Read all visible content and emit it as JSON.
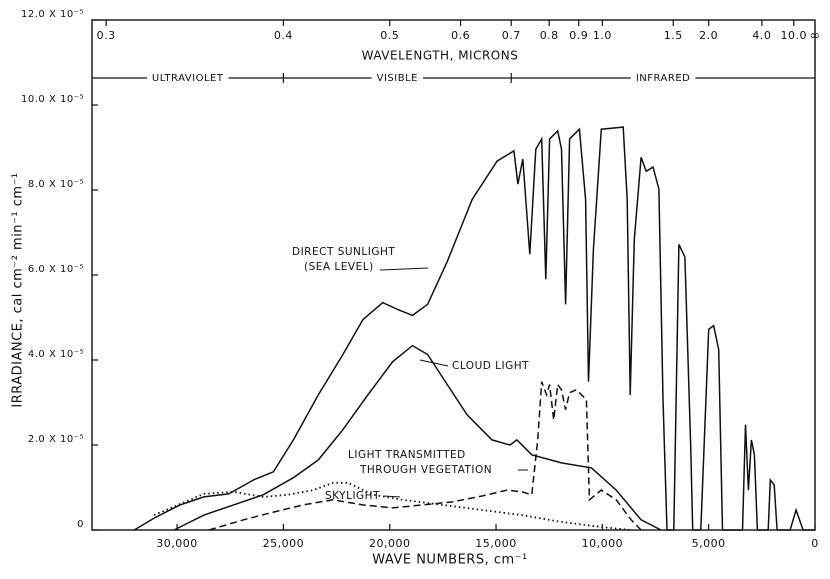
{
  "chart_data": {
    "type": "line",
    "x_title": "WAVE NUMBERS, cm⁻¹",
    "y_title": "IRRADIANCE, cal cm⁻² min⁻¹ cm⁻¹",
    "x2_title": "WAVELENGTH, MICRONS",
    "x2_end_label": "∞",
    "regions": [
      "ULTRAVIOLET",
      "VISIBLE",
      "INFRARED"
    ],
    "region_bounds": [
      0.4,
      0.7
    ],
    "xlim": [
      34000,
      0
    ],
    "ylim": [
      0,
      12
    ],
    "xticks": [
      {
        "value": 30000,
        "label": "30,000"
      },
      {
        "value": 25000,
        "label": "25,000"
      },
      {
        "value": 20000,
        "label": "20,000"
      },
      {
        "value": 15000,
        "label": "15,000"
      },
      {
        "value": 10000,
        "label": "10,000"
      },
      {
        "value": 5000,
        "label": "5,000"
      },
      0
    ],
    "yticks": [
      0,
      {
        "value": 2,
        "label": "2.0 X 10⁻⁵"
      },
      {
        "value": 4,
        "label": "4.0 X 10⁻⁵"
      },
      {
        "value": 6,
        "label": "6.0 X 10⁻⁵"
      },
      {
        "value": 8,
        "label": "8.0 X 10⁻⁵"
      },
      {
        "value": 10,
        "label": "10.0 X 10⁻⁵"
      },
      {
        "value": 12,
        "label": "12.0 X 10⁻⁵"
      }
    ],
    "x2ticks": [
      0.3,
      0.4,
      0.5,
      0.6,
      0.7,
      0.8,
      0.9,
      {
        "value": 1,
        "label": "1.0"
      },
      1.5,
      {
        "value": 2,
        "label": "2.0"
      },
      {
        "value": 4,
        "label": "4.0"
      },
      {
        "value": 10,
        "label": "10.0"
      }
    ],
    "series": [
      {
        "name": [
          "DIRECT SUNLIGHT",
          "(SEA LEVEL)"
        ],
        "color": "#111111",
        "dash": "solid",
        "x": [
          32010,
          31080,
          29860,
          28740,
          27570,
          26400,
          25470,
          24530,
          23360,
          22200,
          21260,
          20330,
          19630,
          18930,
          18220,
          17290,
          16120,
          14950,
          14160,
          13970,
          13740,
          13410,
          13130,
          12850,
          12660,
          12480,
          12100,
          11920,
          11730,
          11540,
          11080,
          10790,
          10650,
          10420,
          10050,
          9020,
          8830,
          8690,
          8500,
          8180,
          7940,
          7620,
          7340,
          7150,
          6960,
          6640,
          6400,
          6120,
          5840,
          5750,
          5370,
          5000,
          4770,
          4530,
          4350,
          3410,
          3270,
          3130,
          2990,
          2850,
          2710,
          2200,
          2100,
          1920,
          1780,
          1170,
          890,
          560,
          0
        ],
        "values": [
          0,
          0.28,
          0.59,
          0.78,
          0.85,
          1.18,
          1.37,
          2.12,
          3.18,
          4.13,
          4.95,
          5.35,
          5.19,
          5.05,
          5.31,
          6.32,
          7.78,
          8.68,
          8.92,
          8.14,
          8.73,
          6.49,
          8.96,
          9.2,
          5.9,
          9.2,
          9.39,
          8.96,
          5.31,
          9.2,
          9.43,
          7.78,
          3.49,
          6.6,
          9.43,
          9.48,
          7.78,
          3.18,
          6.84,
          8.77,
          8.44,
          8.54,
          8.02,
          3.07,
          0,
          0,
          6.72,
          6.42,
          1.89,
          0,
          0,
          4.72,
          4.81,
          4.25,
          0,
          0,
          2.48,
          0.94,
          2.12,
          1.77,
          0,
          0,
          1.18,
          1.06,
          0,
          0,
          0.47,
          0,
          0
        ]
      },
      {
        "name": [
          "CLOUD LIGHT"
        ],
        "color": "#111111",
        "dash": "solid",
        "x": [
          30140,
          28740,
          27340,
          25940,
          24530,
          23360,
          22200,
          21030,
          19860,
          18930,
          18220,
          17290,
          16360,
          15190,
          14350,
          14020,
          13320,
          11920,
          10510,
          9350,
          8180,
          7240
        ],
        "values": [
          0,
          0.35,
          0.59,
          0.83,
          1.23,
          1.65,
          2.36,
          3.18,
          3.96,
          4.34,
          4.13,
          3.42,
          2.71,
          2.12,
          2,
          2.12,
          1.77,
          1.58,
          1.46,
          0.94,
          0.24,
          0
        ]
      },
      {
        "name": [
          "LIGHT TRANSMITTED",
          "THROUGH VEGETATION"
        ],
        "color": "#111111",
        "dash": "dashed",
        "x": [
          28500,
          26870,
          25470,
          24070,
          22660,
          21260,
          19860,
          18460,
          17060,
          15650,
          14490,
          13790,
          13320,
          13040,
          12850,
          12620,
          12480,
          12290,
          12100,
          11920,
          11730,
          11540,
          11220,
          10980,
          10750,
          10610,
          10050,
          9350,
          8650,
          8180
        ],
        "values": [
          0,
          0.24,
          0.42,
          0.59,
          0.71,
          0.59,
          0.52,
          0.59,
          0.66,
          0.8,
          0.94,
          0.9,
          0.83,
          2.12,
          3.49,
          3.18,
          3.42,
          2.59,
          3.42,
          3.3,
          2.83,
          3.23,
          3.3,
          3.18,
          3.07,
          0.71,
          0.94,
          0.71,
          0.24,
          0
        ]
      },
      {
        "name": [
          "SKYLIGHT"
        ],
        "color": "#111111",
        "dash": "dotted",
        "x": [
          31080,
          28740,
          27340,
          25940,
          24770,
          23600,
          22660,
          21960,
          20800,
          19390,
          17520,
          15650,
          13790,
          11920,
          10050,
          8650
        ],
        "values": [
          0.35,
          0.85,
          0.9,
          0.78,
          0.83,
          0.94,
          1.11,
          1.11,
          0.83,
          0.71,
          0.59,
          0.47,
          0.35,
          0.19,
          0.07,
          0
        ]
      }
    ]
  }
}
